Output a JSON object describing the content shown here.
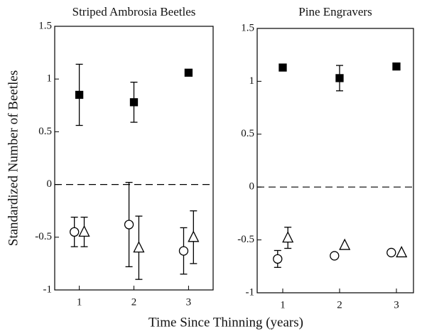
{
  "chart_data": [
    {
      "type": "scatter",
      "title": "Striped Ambrosia Beetles",
      "ylabel": "Standardized Number of Beetles",
      "xlabel": "Time Since Thinning (years)",
      "xlim": [
        0.55,
        3.45
      ],
      "xticks": [
        1,
        2,
        3
      ],
      "ylim": [
        -1,
        1.5
      ],
      "yticks": [
        1.5,
        1,
        0.5,
        0,
        -0.5,
        -1
      ],
      "hline": 0,
      "series": [
        {
          "marker": "square",
          "color": "#000000",
          "x": [
            1,
            2,
            3
          ],
          "values": [
            0.85,
            0.78,
            1.06
          ],
          "errors": [
            0.29,
            0.19,
            null
          ]
        },
        {
          "marker": "circle",
          "color": "#000000",
          "x": [
            1,
            2,
            3
          ],
          "values": [
            -0.45,
            -0.38,
            -0.63
          ],
          "errors": [
            0.14,
            0.4,
            0.22
          ]
        },
        {
          "marker": "triangle",
          "color": "#000000",
          "x": [
            1,
            2,
            3
          ],
          "values": [
            -0.45,
            -0.6,
            -0.5
          ],
          "errors": [
            0.14,
            0.3,
            0.25
          ]
        }
      ]
    },
    {
      "type": "scatter",
      "title": "Pine Engravers",
      "xlim": [
        0.55,
        3.3
      ],
      "xticks": [
        1,
        2,
        3
      ],
      "ylim": [
        -1,
        1.5
      ],
      "yticks": [
        1.5,
        1,
        0.5,
        0,
        -0.5,
        -1
      ],
      "hline": 0,
      "series": [
        {
          "marker": "square",
          "color": "#000000",
          "x": [
            1,
            2,
            3
          ],
          "values": [
            1.13,
            1.03,
            1.14
          ],
          "errors": [
            null,
            0.12,
            null
          ]
        },
        {
          "marker": "circle",
          "color": "#000000",
          "x": [
            1,
            2,
            3
          ],
          "values": [
            -0.68,
            -0.65,
            -0.62
          ],
          "errors": [
            0.08,
            null,
            null
          ]
        },
        {
          "marker": "triangle",
          "color": "#000000",
          "x": [
            1,
            2,
            3
          ],
          "values": [
            -0.48,
            -0.55,
            -0.62
          ],
          "errors": [
            0.1,
            null,
            null
          ]
        }
      ]
    }
  ]
}
